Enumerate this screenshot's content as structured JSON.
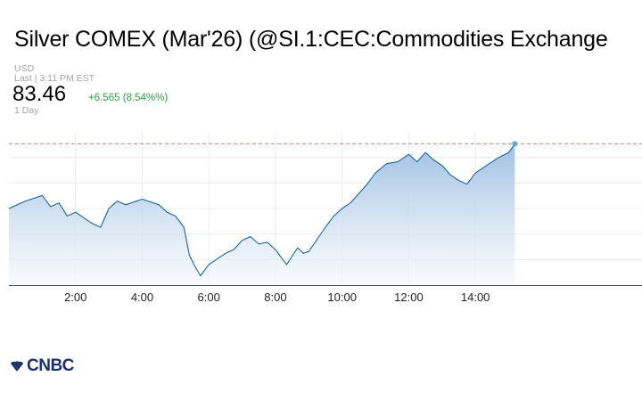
{
  "header": {
    "title": "Silver COMEX (Mar'26) (@SI.1:CEC:Commodities Exchange",
    "currency": "USD",
    "last_time": "Last | 3:11 PM EST",
    "price": "83.46",
    "change": "+6.565 (8.54%%)",
    "range": "1 Day"
  },
  "brand": {
    "logo_text": "CNBC"
  },
  "colors": {
    "line": "#1565a8",
    "fill_top": "#9ebfe3",
    "fill_bottom": "#f3f7fc",
    "reference": "#e07a62",
    "positive": "#2fa043"
  },
  "chart_data": {
    "type": "area",
    "title": "",
    "xlabel": "",
    "ylabel": "",
    "x_ticks": [
      "2:00",
      "4:00",
      "6:00",
      "8:00",
      "10:00",
      "12:00",
      "14:00"
    ],
    "xlim": [
      "0:00",
      "19:00"
    ],
    "ylim": [
      75.9,
      84.1
    ],
    "y_axis_labels": "hidden",
    "grid": true,
    "reference_line": 83.46,
    "x": [
      "0:00",
      "0:30",
      "1:00",
      "1:15",
      "1:30",
      "1:45",
      "2:00",
      "2:30",
      "2:45",
      "3:00",
      "3:15",
      "3:30",
      "4:00",
      "4:30",
      "4:45",
      "5:00",
      "5:15",
      "5:25",
      "5:35",
      "5:45",
      "6:00",
      "6:15",
      "6:30",
      "6:45",
      "7:00",
      "7:15",
      "7:30",
      "7:45",
      "8:00",
      "8:20",
      "8:40",
      "8:50",
      "9:00",
      "9:30",
      "9:45",
      "10:00",
      "10:15",
      "10:30",
      "10:45",
      "11:00",
      "11:20",
      "11:40",
      "12:00",
      "12:15",
      "12:30",
      "12:45",
      "13:00",
      "13:15",
      "13:30",
      "13:45",
      "14:00",
      "14:20",
      "14:40",
      "15:00",
      "15:11"
    ],
    "values": [
      80.0,
      80.4,
      80.7,
      80.1,
      80.3,
      79.6,
      79.8,
      79.2,
      79.0,
      80.0,
      80.4,
      80.2,
      80.5,
      80.2,
      79.8,
      79.6,
      79.0,
      77.5,
      76.9,
      76.4,
      77.0,
      77.3,
      77.6,
      77.8,
      78.3,
      78.5,
      78.1,
      78.2,
      77.8,
      77.0,
      77.9,
      77.6,
      77.7,
      79.0,
      79.6,
      80.0,
      80.3,
      80.8,
      81.3,
      81.9,
      82.4,
      82.5,
      82.9,
      82.5,
      83.0,
      82.6,
      82.3,
      81.8,
      81.5,
      81.3,
      81.9,
      82.3,
      82.7,
      83.0,
      83.46
    ]
  }
}
